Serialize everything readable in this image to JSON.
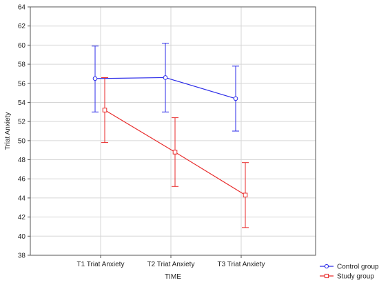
{
  "chart_data": {
    "type": "line",
    "title": "",
    "xlabel": "TIME",
    "ylabel": "Triat Anxiety",
    "categories": [
      "T1 Triat Anxiety",
      "T2 Triat Anxiety",
      "T3 Triat Anxiety"
    ],
    "ylim": [
      38,
      64
    ],
    "yticks": [
      38,
      40,
      42,
      44,
      46,
      48,
      50,
      52,
      54,
      56,
      58,
      60,
      62,
      64
    ],
    "grid": true,
    "legend_position": "bottom-right",
    "series": [
      {
        "name": "Control group",
        "color": "#2a2ae8",
        "marker": "circle",
        "values": [
          56.5,
          56.6,
          54.4
        ],
        "error_low": [
          53.0,
          53.0,
          51.0
        ],
        "error_high": [
          59.9,
          60.2,
          57.8
        ]
      },
      {
        "name": "Study group",
        "color": "#e82a2a",
        "marker": "square",
        "values": [
          53.2,
          48.8,
          44.3
        ],
        "error_low": [
          49.8,
          45.2,
          40.9
        ],
        "error_high": [
          56.6,
          52.4,
          47.7
        ]
      }
    ]
  }
}
